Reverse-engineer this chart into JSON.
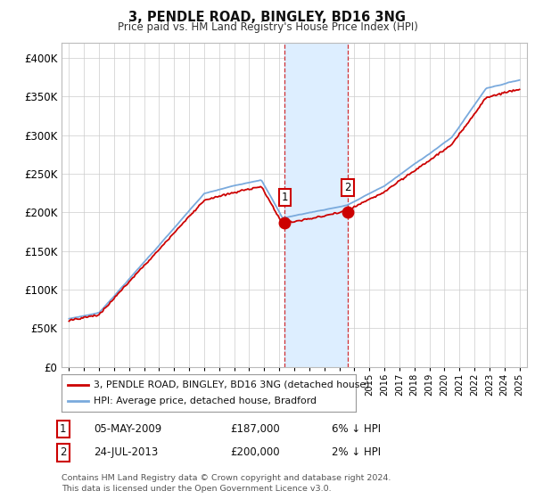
{
  "title": "3, PENDLE ROAD, BINGLEY, BD16 3NG",
  "subtitle": "Price paid vs. HM Land Registry's House Price Index (HPI)",
  "legend_line1": "3, PENDLE ROAD, BINGLEY, BD16 3NG (detached house)",
  "legend_line2": "HPI: Average price, detached house, Bradford",
  "transaction1_label": "1",
  "transaction1_date": "05-MAY-2009",
  "transaction1_price": "£187,000",
  "transaction1_hpi": "6% ↓ HPI",
  "transaction2_label": "2",
  "transaction2_date": "24-JUL-2013",
  "transaction2_price": "£200,000",
  "transaction2_hpi": "2% ↓ HPI",
  "footnote1": "Contains HM Land Registry data © Crown copyright and database right 2024.",
  "footnote2": "This data is licensed under the Open Government Licence v3.0.",
  "price_line_color": "#cc0000",
  "hpi_line_color": "#7aaadd",
  "highlight_color": "#ddeeff",
  "transaction1_x": 2009.37,
  "transaction2_x": 2013.56,
  "ylim": [
    0,
    420000
  ],
  "xlim_start": 1994.5,
  "xlim_end": 2025.5,
  "background_color": "#ffffff",
  "grid_color": "#cccccc"
}
